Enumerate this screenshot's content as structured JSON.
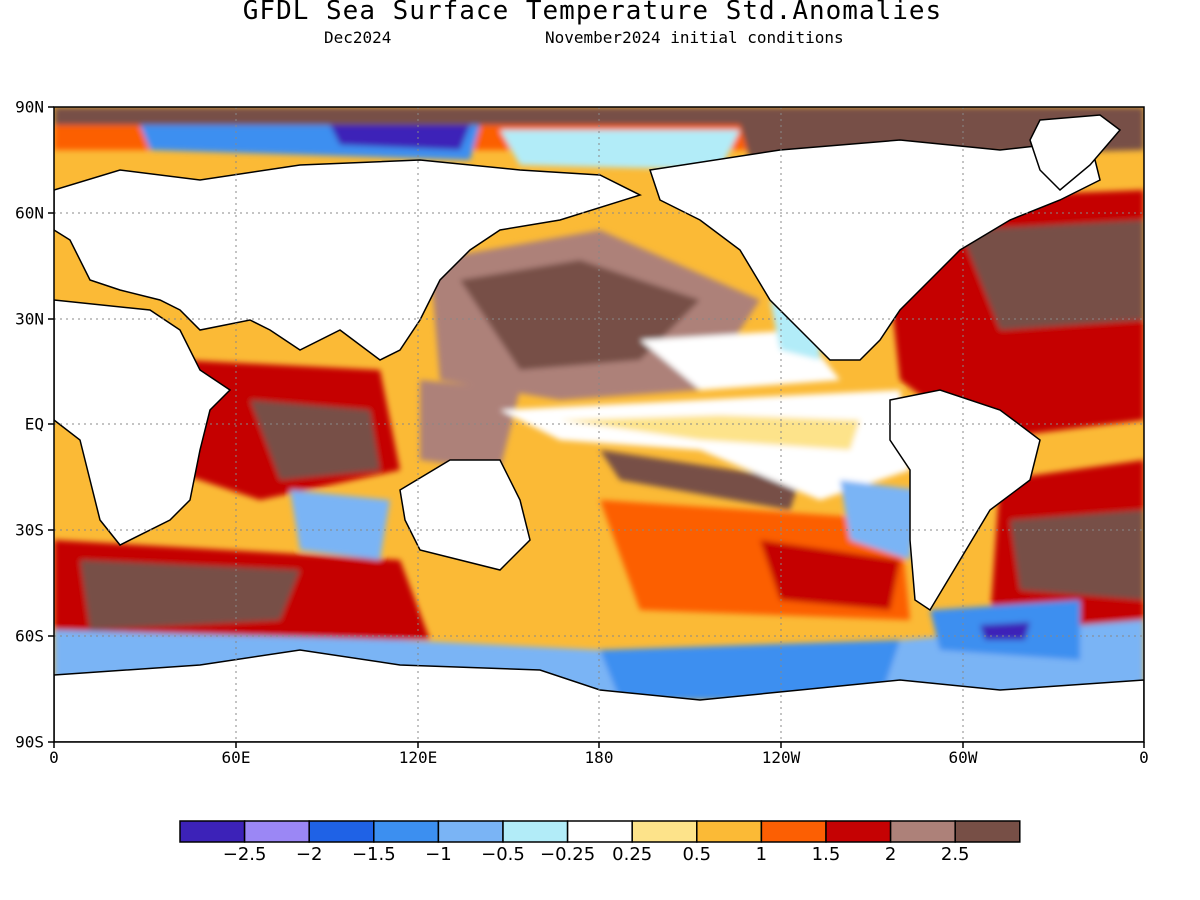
{
  "title": "GFDL Sea Surface Temperature Std.Anomalies",
  "subtitle_left": "Dec2024",
  "subtitle_right": "November2024 initial conditions",
  "lat_labels": [
    "90N",
    "60N",
    "30N",
    "EQ",
    "30S",
    "60S",
    "90S"
  ],
  "lon_labels": [
    "0",
    "60E",
    "120E",
    "180",
    "120W",
    "60W",
    "0"
  ],
  "colorbar": {
    "colors": [
      "#3c22b8",
      "#9b87f5",
      "#1f62e6",
      "#3c8ff0",
      "#7ab4f5",
      "#b2ecf8",
      "#ffffff",
      "#fde38a",
      "#fbba36",
      "#fc5f03",
      "#c50203",
      "#ad8179",
      "#774f46"
    ],
    "labels": [
      "−2.5",
      "−2",
      "−1.5",
      "−1",
      "−0.5",
      "−0.25",
      "0.25",
      "0.5",
      "1",
      "1.5",
      "2",
      "2.5"
    ]
  }
}
